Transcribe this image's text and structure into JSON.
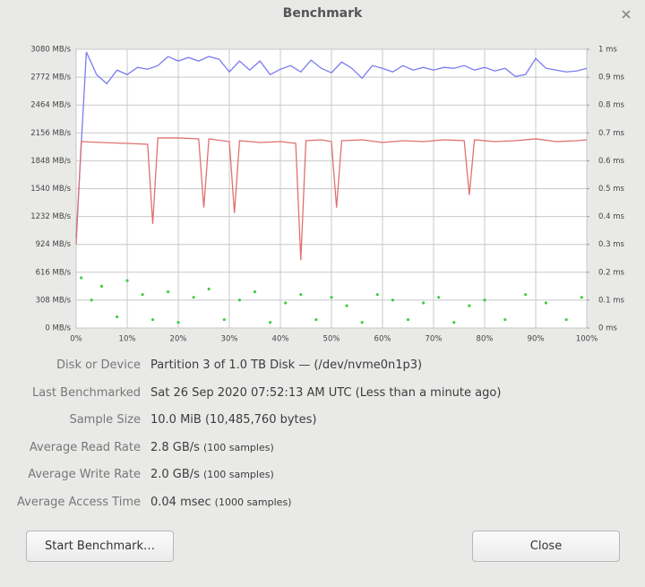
{
  "window": {
    "title": "Benchmark"
  },
  "chart_data": {
    "type": "line",
    "xlim": [
      0,
      100
    ],
    "xticks": [
      {
        "value": 0,
        "label": "0%"
      },
      {
        "value": 10,
        "label": "10%"
      },
      {
        "value": 20,
        "label": "20%"
      },
      {
        "value": 30,
        "label": "30%"
      },
      {
        "value": 40,
        "label": "40%"
      },
      {
        "value": 50,
        "label": "50%"
      },
      {
        "value": 60,
        "label": "60%"
      },
      {
        "value": 70,
        "label": "70%"
      },
      {
        "value": 80,
        "label": "80%"
      },
      {
        "value": 90,
        "label": "90%"
      },
      {
        "value": 100,
        "label": "100%"
      }
    ],
    "ylim": [
      0,
      3080
    ],
    "yticks": [
      {
        "value": 0,
        "label": "0 MB/s"
      },
      {
        "value": 308,
        "label": "308 MB/s"
      },
      {
        "value": 616,
        "label": "616 MB/s"
      },
      {
        "value": 924,
        "label": "924 MB/s"
      },
      {
        "value": 1232,
        "label": "1232 MB/s"
      },
      {
        "value": 1540,
        "label": "1540 MB/s"
      },
      {
        "value": 1848,
        "label": "1848 MB/s"
      },
      {
        "value": 2156,
        "label": "2156 MB/s"
      },
      {
        "value": 2464,
        "label": "2464 MB/s"
      },
      {
        "value": 2772,
        "label": "2772 MB/s"
      },
      {
        "value": 3080,
        "label": "3080 MB/s"
      }
    ],
    "y2lim": [
      0,
      1
    ],
    "y2ticks": [
      {
        "value": 0,
        "label": "0 ms"
      },
      {
        "value": 0.1,
        "label": "0.1 ms"
      },
      {
        "value": 0.2,
        "label": "0.2 ms"
      },
      {
        "value": 0.3,
        "label": "0.3 ms"
      },
      {
        "value": 0.4,
        "label": "0.4 ms"
      },
      {
        "value": 0.5,
        "label": "0.5 ms"
      },
      {
        "value": 0.6,
        "label": "0.6 ms"
      },
      {
        "value": 0.7,
        "label": "0.7 ms"
      },
      {
        "value": 0.8,
        "label": "0.8 ms"
      },
      {
        "value": 0.9,
        "label": "0.9 ms"
      },
      {
        "value": 1,
        "label": "1 ms"
      }
    ],
    "grid": true,
    "series": [
      {
        "type": "line",
        "color": "#7b7bf0",
        "x": [
          0,
          2,
          4,
          6,
          8,
          10,
          12,
          14,
          16,
          18,
          20,
          22,
          24,
          26,
          28,
          30,
          32,
          34,
          36,
          38,
          40,
          42,
          44,
          46,
          48,
          50,
          52,
          54,
          56,
          58,
          60,
          62,
          64,
          66,
          68,
          70,
          72,
          74,
          76,
          78,
          80,
          82,
          84,
          86,
          88,
          90,
          92,
          94,
          96,
          98,
          100
        ],
        "values": [
          1000,
          3050,
          2800,
          2700,
          2850,
          2800,
          2880,
          2860,
          2900,
          3000,
          2950,
          2990,
          2950,
          3000,
          2970,
          2830,
          2950,
          2850,
          2950,
          2800,
          2860,
          2900,
          2830,
          2960,
          2870,
          2820,
          2940,
          2870,
          2760,
          2900,
          2870,
          2830,
          2900,
          2850,
          2880,
          2850,
          2880,
          2870,
          2900,
          2850,
          2880,
          2840,
          2870,
          2780,
          2800,
          2980,
          2870,
          2850,
          2830,
          2840,
          2870
        ]
      },
      {
        "type": "line",
        "color": "#e07070",
        "x": [
          0,
          1,
          5,
          10,
          14,
          15,
          16,
          20,
          24,
          25,
          26,
          30,
          31,
          32,
          36,
          40,
          43,
          44,
          45,
          48,
          50,
          51,
          52,
          56,
          60,
          64,
          68,
          72,
          76,
          77,
          78,
          82,
          86,
          90,
          94,
          98,
          100
        ],
        "values": [
          924,
          2060,
          2050,
          2040,
          2030,
          1150,
          2100,
          2100,
          2090,
          1330,
          2090,
          2060,
          1270,
          2070,
          2050,
          2060,
          2040,
          750,
          2070,
          2080,
          2060,
          1330,
          2070,
          2080,
          2050,
          2070,
          2060,
          2080,
          2070,
          1470,
          2080,
          2060,
          2070,
          2090,
          2060,
          2070,
          2080
        ]
      },
      {
        "type": "scatter",
        "color": "#44cc44",
        "axis": "y2",
        "x": [
          1,
          3,
          5,
          8,
          10,
          13,
          15,
          18,
          20,
          23,
          26,
          29,
          32,
          35,
          38,
          41,
          44,
          47,
          50,
          53,
          56,
          59,
          62,
          65,
          68,
          71,
          74,
          77,
          80,
          84,
          88,
          92,
          96,
          99
        ],
        "values": [
          0.18,
          0.1,
          0.15,
          0.04,
          0.17,
          0.12,
          0.03,
          0.13,
          0.02,
          0.11,
          0.14,
          0.03,
          0.1,
          0.13,
          0.02,
          0.09,
          0.12,
          0.03,
          0.11,
          0.08,
          0.02,
          0.12,
          0.1,
          0.03,
          0.09,
          0.11,
          0.02,
          0.08,
          0.1,
          0.03,
          0.12,
          0.09,
          0.03,
          0.11
        ]
      }
    ]
  },
  "info": {
    "rows": [
      {
        "label": "Disk or Device",
        "value": "Partition 3 of 1.0 TB Disk — (/dev/nvme0n1p3)"
      },
      {
        "label": "Last Benchmarked",
        "value": "Sat 26 Sep 2020 07:52:13 AM UTC (Less than a minute ago)"
      },
      {
        "label": "Sample Size",
        "value": "10.0 MiB (10,485,760 bytes)"
      },
      {
        "label": "Average Read Rate",
        "value": "2.8 GB/s",
        "note": "(100 samples)"
      },
      {
        "label": "Average Write Rate",
        "value": "2.0 GB/s",
        "note": "(100 samples)"
      },
      {
        "label": "Average Access Time",
        "value": "0.04 msec",
        "note": "(1000 samples)"
      }
    ]
  },
  "buttons": [
    "Start Benchmark…",
    "Close"
  ]
}
